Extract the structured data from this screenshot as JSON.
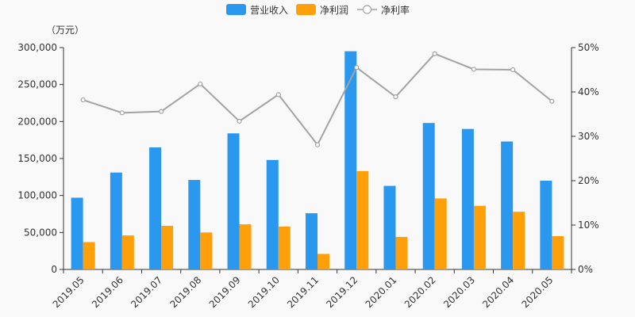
{
  "chart_data": {
    "type": "bar",
    "categories": [
      "2019.05",
      "2019.06",
      "2019.07",
      "2019.08",
      "2019.09",
      "2019.10",
      "2019.11",
      "2019.12",
      "2020.01",
      "2020.02",
      "2020.03",
      "2020.04",
      "2020.05"
    ],
    "series": [
      {
        "name": "营业收入",
        "type": "bar",
        "axis": "left",
        "color": "#2b98f0",
        "values": [
          97000,
          131000,
          165000,
          121000,
          184000,
          148000,
          76000,
          295000,
          113000,
          198000,
          190000,
          173000,
          120000
        ]
      },
      {
        "name": "净利润",
        "type": "bar",
        "axis": "left",
        "color": "#ff9f0a",
        "values": [
          37000,
          46000,
          59000,
          50000,
          61000,
          58000,
          21000,
          133000,
          44000,
          96000,
          86000,
          78000,
          45000
        ]
      },
      {
        "name": "净利率",
        "type": "line",
        "axis": "right",
        "color": "#a3a3a3",
        "values": [
          38.2,
          35.3,
          35.6,
          41.8,
          33.4,
          39.4,
          28.1,
          45.5,
          38.9,
          48.6,
          45.1,
          45.0,
          37.9
        ]
      }
    ],
    "left_axis": {
      "unit": "（万元）",
      "ylim": [
        0,
        300000
      ],
      "ticks": [
        "0",
        "50,000",
        "100,000",
        "150,000",
        "200,000",
        "250,000",
        "300,000"
      ]
    },
    "right_axis": {
      "ylim": [
        0,
        50
      ],
      "ticks": [
        "0%",
        "10%",
        "20%",
        "30%",
        "40%",
        "50%"
      ]
    },
    "legend_position": "top-center",
    "grid": false
  }
}
